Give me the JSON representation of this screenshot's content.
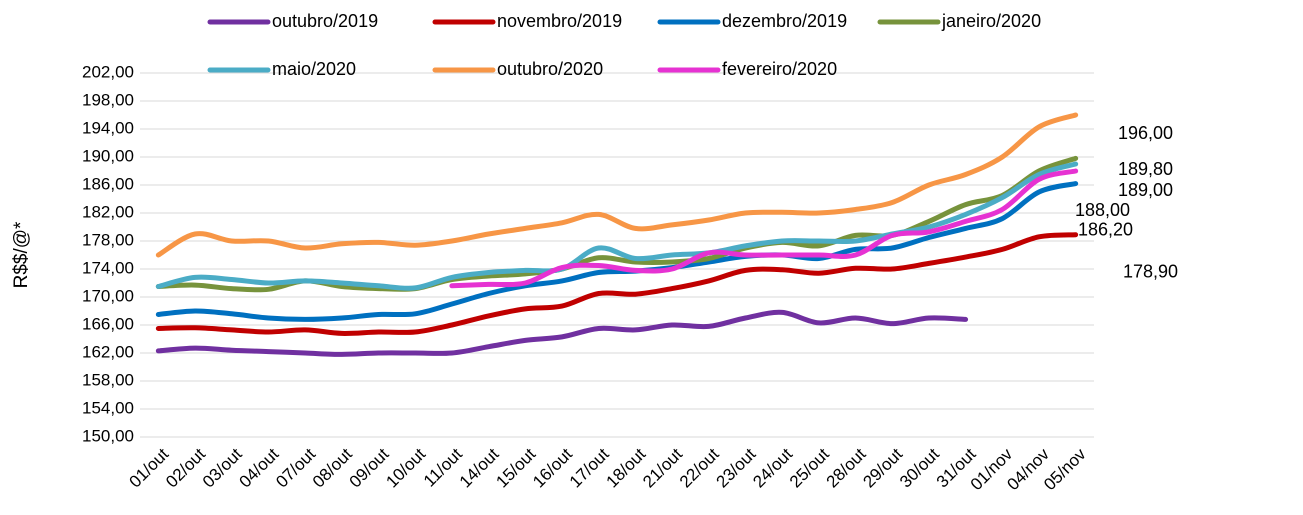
{
  "chart_data": {
    "type": "line",
    "y_label": "R$$/@*",
    "categories": [
      "01/out",
      "02/out",
      "03/out",
      "04/out",
      "07/out",
      "08/out",
      "09/out",
      "10/out",
      "11/out",
      "14/out",
      "15/out",
      "16/out",
      "17/out",
      "18/out",
      "21/out",
      "22/out",
      "23/out",
      "24/out",
      "25/out",
      "28/out",
      "29/out",
      "30/out",
      "31/out",
      "01/nov",
      "04/nov",
      "05/nov"
    ],
    "ylim": [
      150,
      202
    ],
    "yticks": [
      {
        "value": 150,
        "label": "150,00"
      },
      {
        "value": 154,
        "label": "154,00"
      },
      {
        "value": 158,
        "label": "158,00"
      },
      {
        "value": 162,
        "label": "162,00"
      },
      {
        "value": 166,
        "label": "166,00"
      },
      {
        "value": 170,
        "label": "170,00"
      },
      {
        "value": 174,
        "label": "174,00"
      },
      {
        "value": 178,
        "label": "178,00"
      },
      {
        "value": 182,
        "label": "182,00"
      },
      {
        "value": 186,
        "label": "186,00"
      },
      {
        "value": 190,
        "label": "190,00"
      },
      {
        "value": 194,
        "label": "194,00"
      },
      {
        "value": 198,
        "label": "198,00"
      },
      {
        "value": 202,
        "label": "202,00"
      }
    ],
    "grid": true,
    "series": [
      {
        "name": "outubro/2019",
        "color": "#7030a0",
        "values": [
          162.3,
          162.7,
          162.4,
          162.2,
          162.0,
          161.8,
          162.0,
          162.0,
          162.0,
          162.9,
          163.8,
          164.3,
          165.5,
          165.3,
          166.0,
          165.8,
          167.0,
          167.8,
          166.3,
          167.0,
          166.2,
          167.0,
          166.8,
          null,
          null,
          null
        ]
      },
      {
        "name": "novembro/2019",
        "color": "#c00000",
        "values": [
          165.5,
          165.6,
          165.3,
          165.0,
          165.3,
          164.8,
          165.0,
          165.0,
          166.0,
          167.3,
          168.3,
          168.7,
          170.5,
          170.4,
          171.2,
          172.3,
          173.8,
          173.9,
          173.4,
          174.1,
          174.0,
          174.8,
          175.7,
          176.8,
          178.6,
          178.9
        ],
        "value_labels": [
          null,
          null,
          null,
          null,
          null,
          null,
          null,
          null,
          null,
          null,
          null,
          null,
          null,
          null,
          null,
          null,
          null,
          null,
          null,
          null,
          null,
          null,
          null,
          null,
          null,
          "178,90"
        ]
      },
      {
        "name": "dezembro/2019",
        "color": "#0070c0",
        "values": [
          167.5,
          168.0,
          167.6,
          167.0,
          166.8,
          167.0,
          167.5,
          167.6,
          169.0,
          170.5,
          171.6,
          172.3,
          173.5,
          173.7,
          174.2,
          175.0,
          175.8,
          176.0,
          175.5,
          176.8,
          177.0,
          178.5,
          179.8,
          181.2,
          185.0,
          186.2
        ],
        "value_labels": [
          null,
          null,
          null,
          null,
          null,
          null,
          null,
          null,
          null,
          null,
          null,
          null,
          null,
          null,
          null,
          null,
          null,
          null,
          null,
          null,
          null,
          null,
          null,
          null,
          null,
          "186,20"
        ]
      },
      {
        "name": "janeiro/2020",
        "color": "#77933c",
        "values": [
          171.5,
          171.7,
          171.2,
          171.1,
          172.3,
          171.5,
          171.2,
          171.2,
          172.5,
          173.0,
          173.3,
          174.0,
          175.6,
          175.0,
          175.0,
          175.5,
          177.0,
          177.8,
          177.3,
          178.8,
          178.8,
          180.8,
          183.2,
          184.5,
          188.0,
          189.8
        ],
        "value_labels": [
          null,
          null,
          null,
          null,
          null,
          null,
          null,
          null,
          null,
          null,
          null,
          null,
          null,
          null,
          null,
          null,
          null,
          null,
          null,
          null,
          null,
          null,
          null,
          null,
          null,
          "189,80"
        ]
      },
      {
        "name": "maio/2020",
        "color": "#4bacc6",
        "values": [
          171.5,
          172.8,
          172.5,
          172.0,
          172.3,
          172.0,
          171.6,
          171.3,
          172.8,
          173.5,
          173.8,
          174.0,
          177.0,
          175.5,
          176.0,
          176.3,
          177.3,
          178.0,
          178.0,
          178.0,
          179.0,
          180.0,
          181.8,
          184.2,
          187.5,
          189.0
        ],
        "value_labels": [
          null,
          null,
          null,
          null,
          null,
          null,
          null,
          null,
          null,
          null,
          null,
          null,
          null,
          null,
          null,
          null,
          null,
          null,
          null,
          null,
          null,
          null,
          null,
          null,
          null,
          "189,00"
        ]
      },
      {
        "name": "outubro/2020",
        "color": "#f79646",
        "values": [
          176.0,
          179.0,
          178.0,
          178.0,
          177.0,
          177.6,
          177.8,
          177.4,
          178.0,
          179.0,
          179.8,
          180.6,
          181.8,
          179.8,
          180.3,
          181.0,
          182.0,
          182.1,
          182.0,
          182.5,
          183.5,
          186.0,
          187.5,
          190.0,
          194.3,
          196.0
        ],
        "value_labels": [
          null,
          null,
          null,
          null,
          null,
          null,
          null,
          null,
          null,
          null,
          null,
          null,
          null,
          null,
          null,
          null,
          null,
          null,
          null,
          null,
          null,
          null,
          null,
          null,
          null,
          "196,00"
        ]
      },
      {
        "name": "fevereiro/2020",
        "color": "#e632d2",
        "values": [
          null,
          null,
          null,
          null,
          null,
          null,
          null,
          null,
          171.6,
          171.8,
          172.0,
          174.2,
          174.5,
          173.8,
          174.0,
          176.3,
          176.0,
          176.0,
          176.0,
          176.0,
          178.8,
          179.3,
          180.8,
          182.5,
          186.8,
          188.0
        ],
        "value_labels": [
          null,
          null,
          null,
          null,
          null,
          null,
          null,
          null,
          null,
          null,
          null,
          null,
          null,
          null,
          null,
          null,
          null,
          null,
          null,
          null,
          null,
          null,
          null,
          null,
          null,
          "188,00"
        ]
      }
    ]
  }
}
